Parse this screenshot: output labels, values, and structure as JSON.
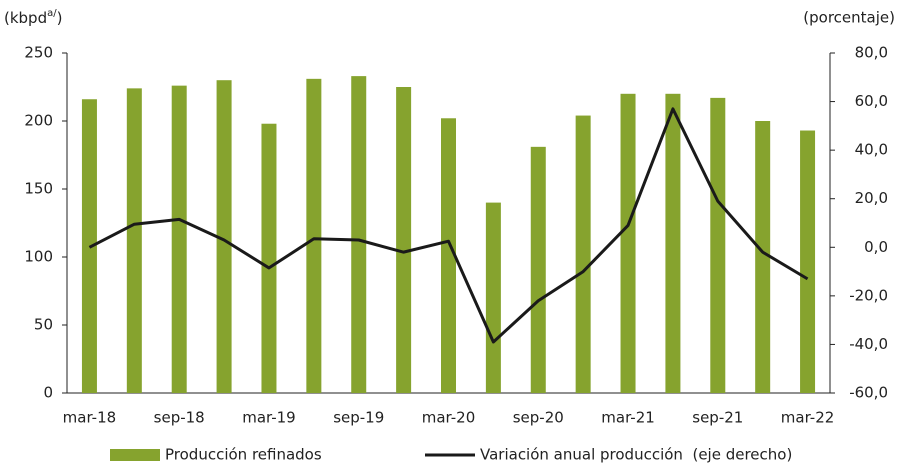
{
  "chart_data": {
    "type": "bar_line",
    "y_label_parts": [
      "(kbpd",
      "a/",
      ")"
    ],
    "y2_label": "(porcentaje)",
    "categories": [
      "mar-18",
      null,
      "sep-18",
      null,
      "mar-19",
      null,
      "sep-19",
      null,
      "mar-20",
      null,
      "sep-20",
      null,
      "mar-21",
      null,
      "sep-21",
      null,
      "mar-22"
    ],
    "series": [
      {
        "name": "Producción refinados",
        "type": "bar",
        "color": "#86a32e",
        "values": [
          216,
          224,
          226,
          230,
          198,
          231,
          233,
          225,
          202,
          140,
          181,
          204,
          220,
          220,
          217,
          200,
          193
        ]
      },
      {
        "name": "Variación anual producción  (eje derecho)",
        "type": "line",
        "axis": "y2",
        "color": "#1a1a1a",
        "values": [
          0,
          9.5,
          11.5,
          3,
          -8.5,
          3.5,
          3,
          -2,
          2.5,
          -39,
          -22,
          -10,
          9,
          57,
          19,
          -2,
          -13
        ]
      }
    ],
    "ylim": [
      0,
      250
    ],
    "yticks": [
      0,
      50,
      100,
      150,
      200,
      250
    ],
    "y2lim": [
      -60,
      80
    ],
    "y2ticks": [
      {
        "value": -60,
        "label": "-60,0"
      },
      {
        "value": -40,
        "label": "-40,0"
      },
      {
        "value": -20,
        "label": "-20,0"
      },
      {
        "value": 0,
        "label": "0,0"
      },
      {
        "value": 20,
        "label": "20,0"
      },
      {
        "value": 40,
        "label": "40,0"
      },
      {
        "value": 60,
        "label": "60,0"
      },
      {
        "value": 80,
        "label": "80,0"
      }
    ]
  }
}
